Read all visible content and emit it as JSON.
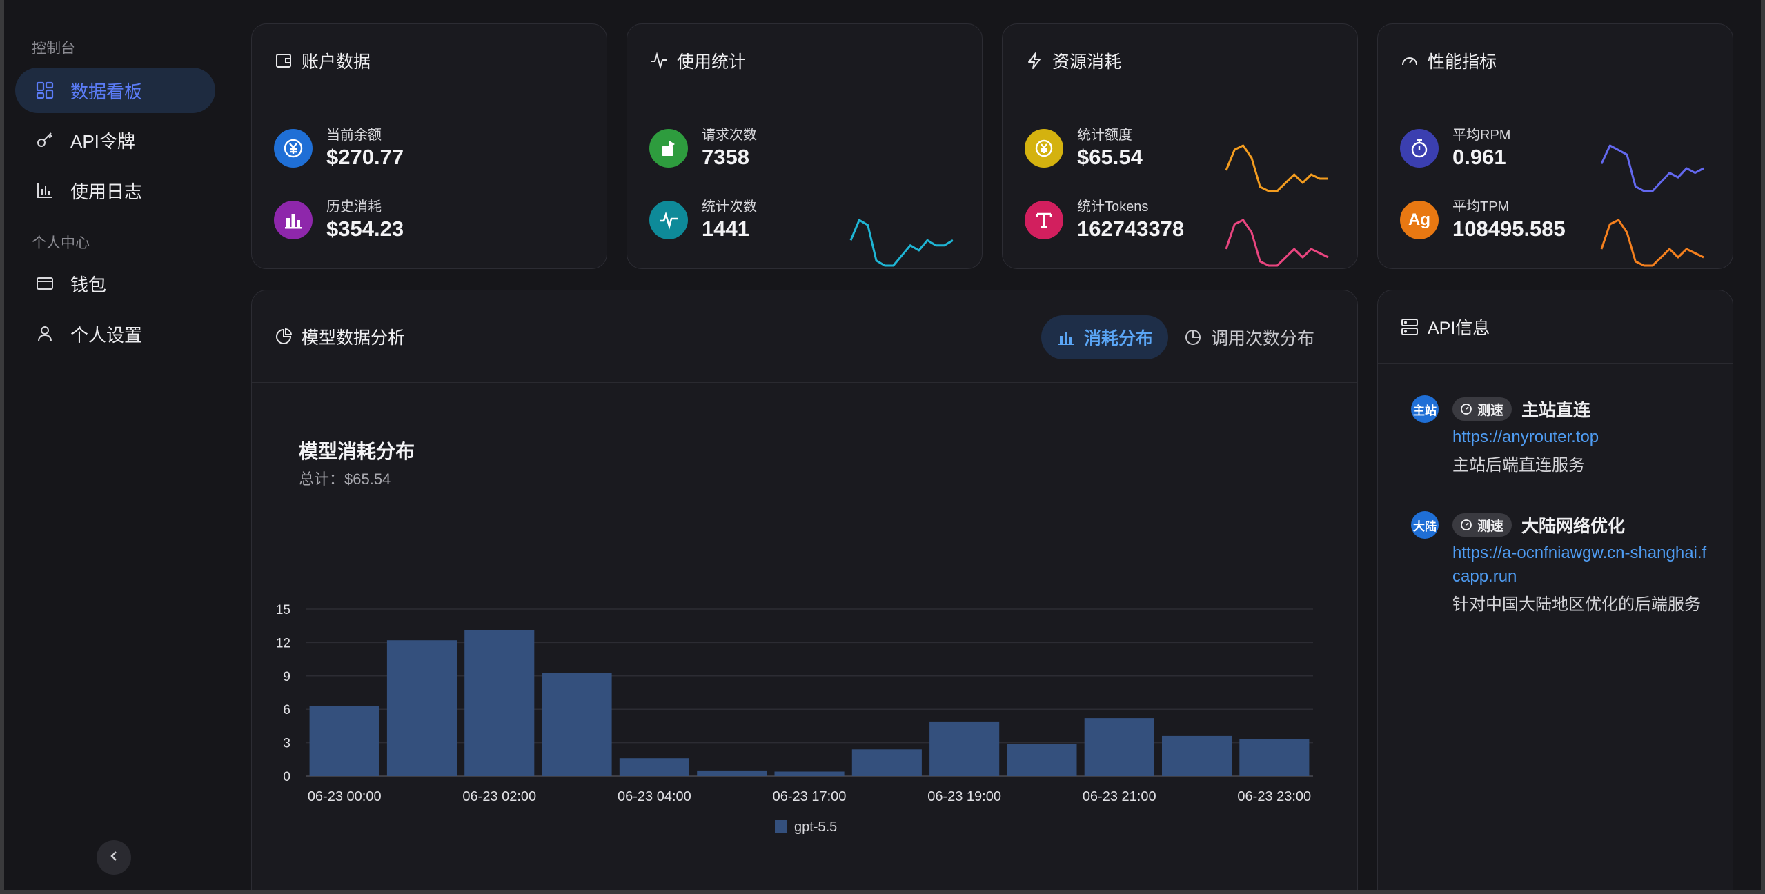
{
  "sidebar": {
    "group_console": "控制台",
    "items_console": [
      {
        "label": "数据看板",
        "icon": "dashboard-grid-icon",
        "active": true
      },
      {
        "label": "API令牌",
        "icon": "key-icon",
        "active": false
      },
      {
        "label": "使用日志",
        "icon": "bar-chart-icon",
        "active": false
      }
    ],
    "group_personal": "个人中心",
    "items_personal": [
      {
        "label": "钱包",
        "icon": "credit-card-icon"
      },
      {
        "label": "个人设置",
        "icon": "user-icon"
      }
    ]
  },
  "cards": {
    "account": {
      "title": "账户数据",
      "balance_label": "当前余额",
      "balance_value": "$270.77",
      "spent_label": "历史消耗",
      "spent_value": "$354.23"
    },
    "usage": {
      "title": "使用统计",
      "requests_label": "请求次数",
      "requests_value": "7358",
      "stat_count_label": "统计次数",
      "stat_count_value": "1441"
    },
    "resource": {
      "title": "资源消耗",
      "quota_label": "统计额度",
      "quota_value": "$65.54",
      "tokens_label": "统计Tokens",
      "tokens_value": "162743378"
    },
    "performance": {
      "title": "性能指标",
      "rpm_label": "平均RPM",
      "rpm_value": "0.961",
      "tpm_label": "平均TPM",
      "tpm_value": "108495.585"
    }
  },
  "sparklines": {
    "stat_count": {
      "color": "#1fb5d4",
      "values": [
        5,
        9,
        8,
        1,
        0,
        0,
        2,
        4,
        3,
        5,
        4,
        4,
        5
      ]
    },
    "quota": {
      "color": "#f39c1f",
      "values": [
        6,
        11,
        12,
        9,
        2,
        1,
        1,
        3,
        5,
        3,
        5,
        4,
        4
      ]
    },
    "tokens": {
      "color": "#e9457f",
      "values": [
        5,
        11,
        12,
        9,
        2,
        1,
        1,
        3,
        5,
        3,
        5,
        4,
        3
      ]
    },
    "rpm": {
      "color": "#6368ee",
      "values": [
        6,
        10,
        9,
        8,
        1,
        0,
        0,
        2,
        4,
        3,
        5,
        4,
        5
      ]
    },
    "tpm": {
      "color": "#f5801e",
      "values": [
        5,
        11,
        12,
        9,
        2,
        1,
        1,
        3,
        5,
        3,
        5,
        4,
        3
      ]
    }
  },
  "analysis": {
    "title": "模型数据分析",
    "tab_consumption": "消耗分布",
    "tab_calls": "调用次数分布",
    "chart_title": "模型消耗分布",
    "chart_total": "总计：$65.54"
  },
  "chart_data": {
    "type": "bar",
    "categories": [
      "06-23 00:00",
      "06-23 01:00",
      "06-23 02:00",
      "06-23 03:00",
      "06-23 04:00",
      "06-23 05:00",
      "06-23 17:00",
      "06-23 18:00",
      "06-23 19:00",
      "06-23 20:00",
      "06-23 21:00",
      "06-23 22:00",
      "06-23 23:00"
    ],
    "tick_labels": [
      "06-23 00:00",
      "",
      "06-23 02:00",
      "",
      "06-23 04:00",
      "",
      "06-23 17:00",
      "",
      "06-23 19:00",
      "",
      "06-23 21:00",
      "",
      "06-23 23:00"
    ],
    "series": [
      {
        "name": "gpt-5.5",
        "values": [
          6.3,
          12.2,
          13.1,
          9.3,
          1.6,
          0.5,
          0.4,
          2.4,
          4.9,
          2.9,
          5.2,
          3.6,
          3.3
        ]
      }
    ],
    "ylim": [
      0,
      15
    ],
    "yticks": [
      0,
      3,
      6,
      9,
      12,
      15
    ],
    "grid": true,
    "legend": "bottom-center",
    "bar_color": "#34507d"
  },
  "api_info": {
    "title": "API信息",
    "speed_label": "测速",
    "entries": [
      {
        "badge": "主站",
        "name": "主站直连",
        "url": "https://anyrouter.top",
        "desc": "主站后端直连服务"
      },
      {
        "badge": "大陆",
        "name": "大陆网络优化",
        "url": "https://a-ocnfniawgw.cn-shanghai.fcapp.run",
        "desc": "针对中国大陆地区优化的后端服务"
      }
    ]
  }
}
